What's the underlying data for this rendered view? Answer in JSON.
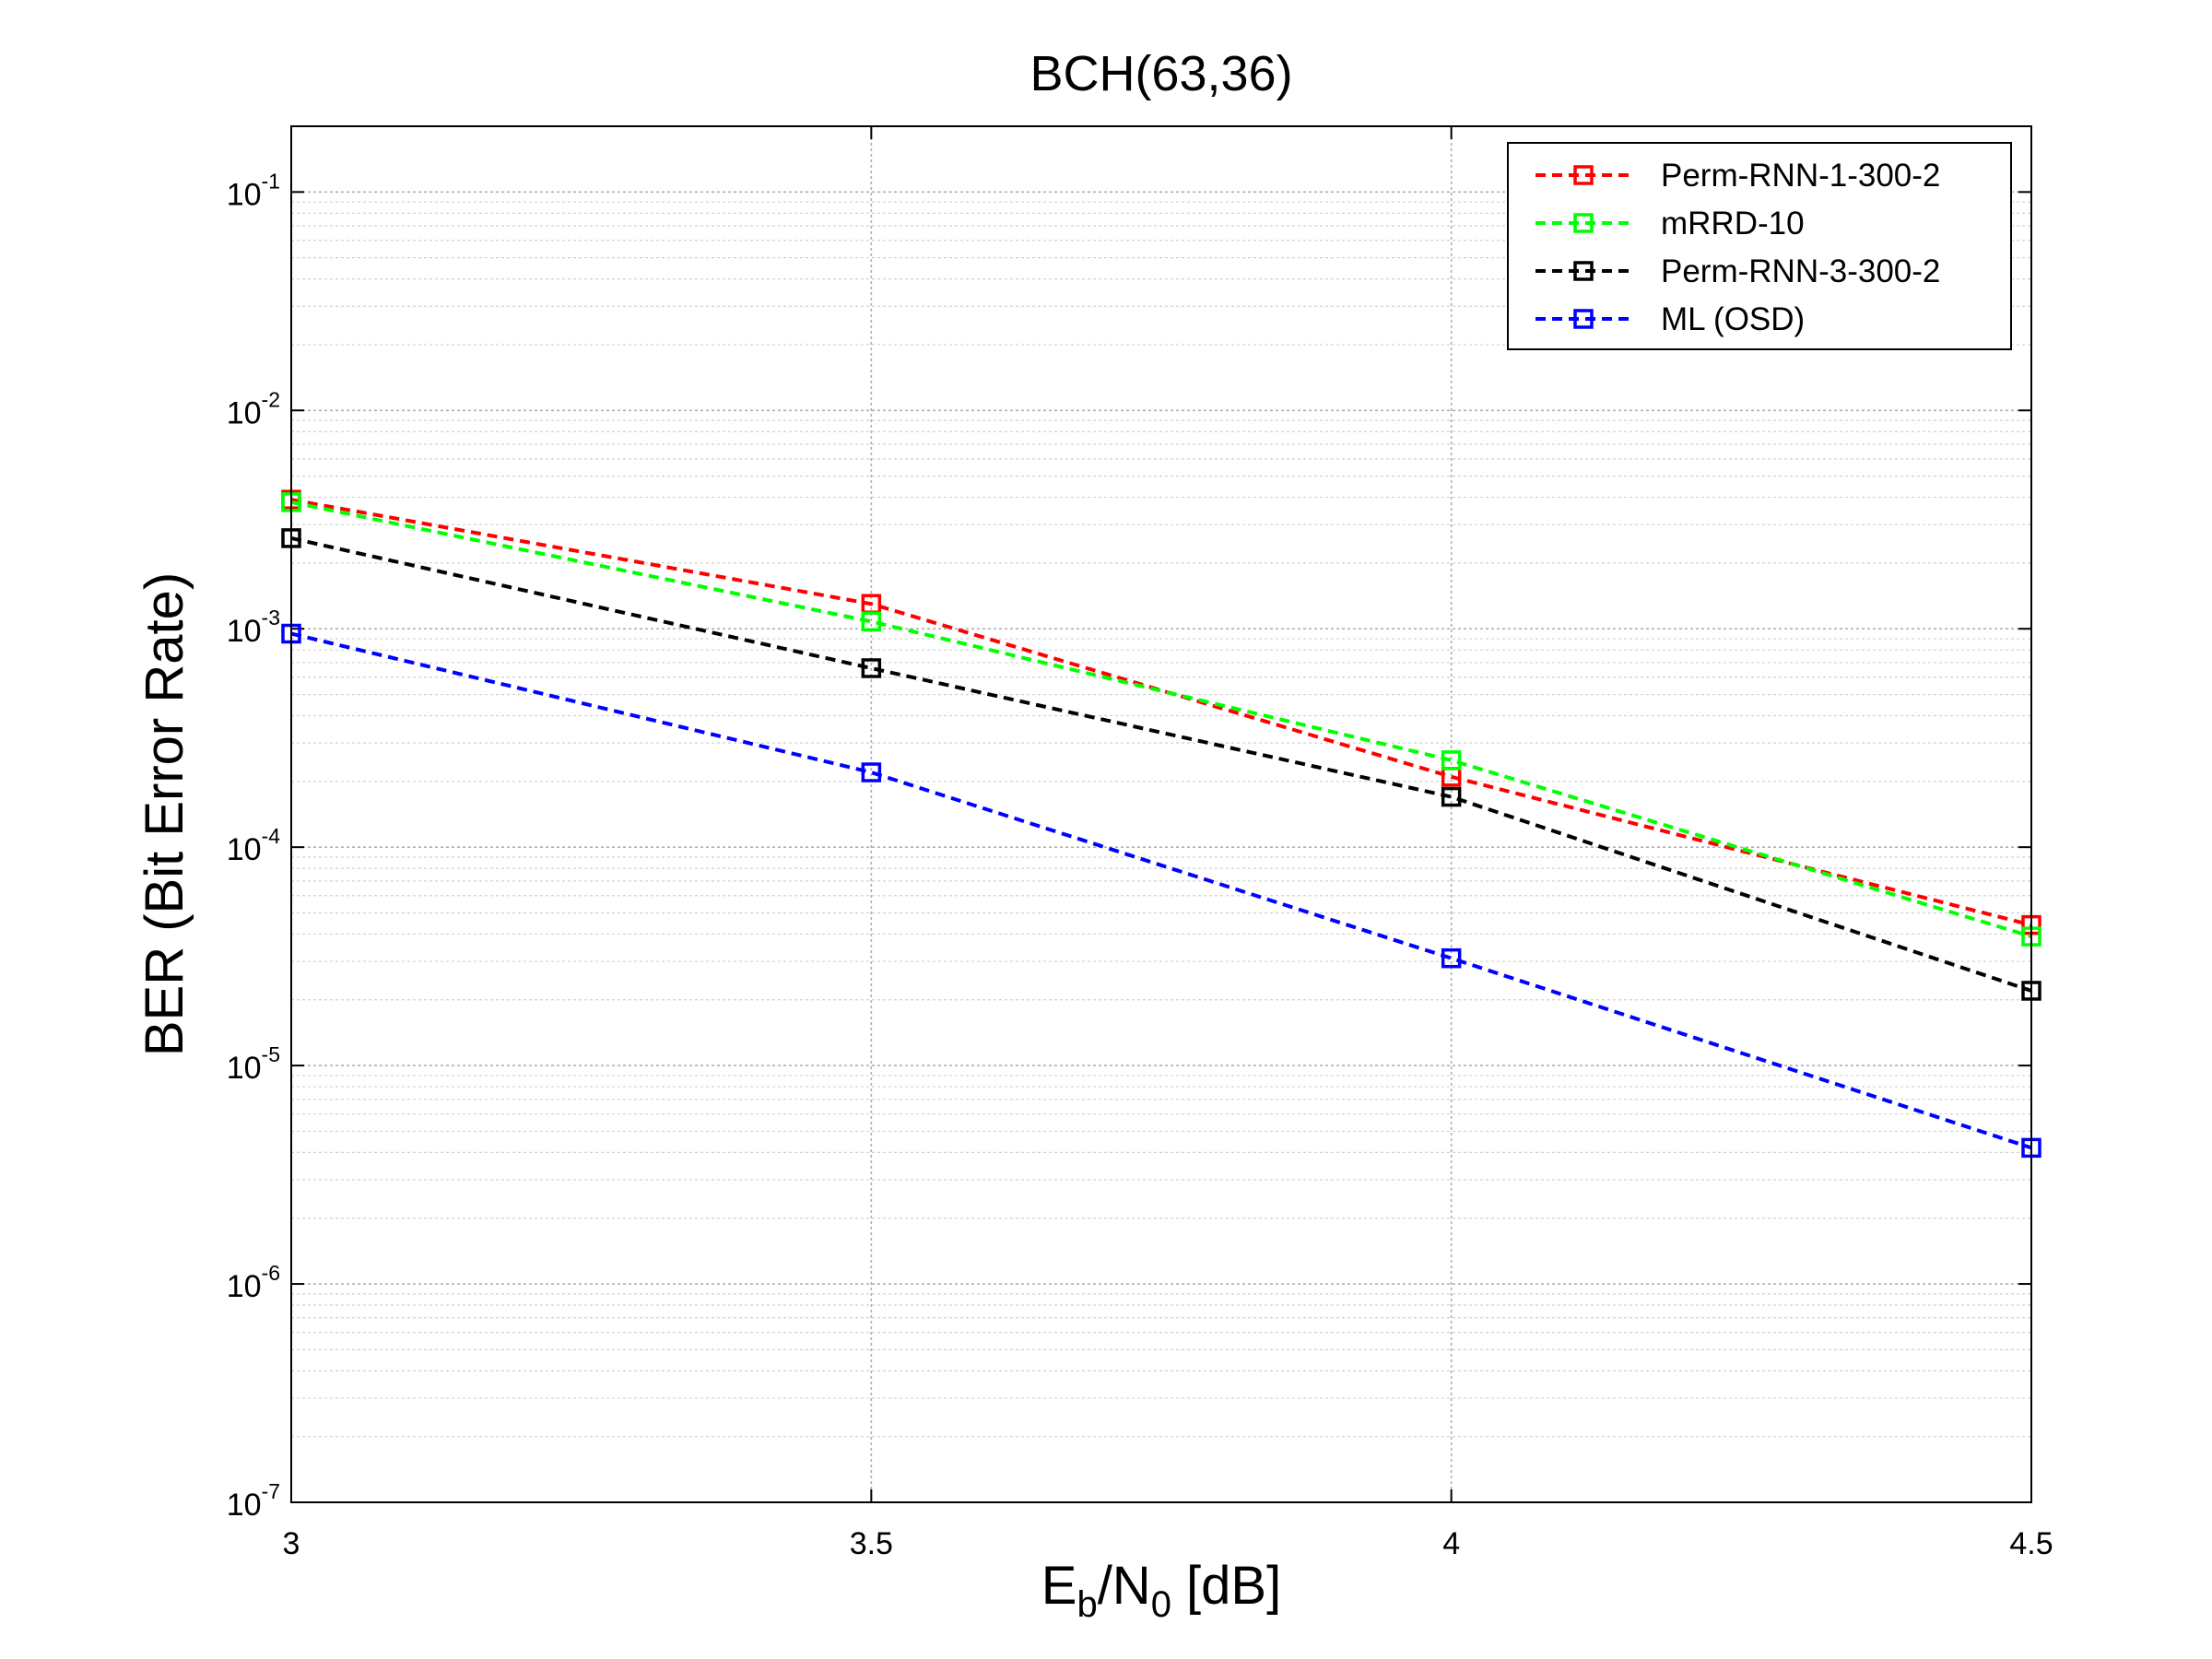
{
  "chart_data": {
    "type": "line",
    "title": "BCH(63,36)",
    "xlabel": {
      "main": "E",
      "sub1": "b",
      "slash": "/N",
      "sub2": "0",
      "tail": " [dB]"
    },
    "ylabel": "BER (Bit Error Rate)",
    "xlim": [
      3,
      4.5
    ],
    "ylim": [
      1e-07,
      0.2
    ],
    "yscale": "log",
    "grid": true,
    "legend_position": "top-right",
    "x_ticks": [
      {
        "value": 3,
        "label": "3"
      },
      {
        "value": 3.5,
        "label": "3.5"
      },
      {
        "value": 4,
        "label": "4"
      },
      {
        "value": 4.5,
        "label": "4.5"
      }
    ],
    "y_ticks": [
      {
        "exp": -1,
        "base": "10",
        "sup": "-1"
      },
      {
        "exp": -2,
        "base": "10",
        "sup": "-2"
      },
      {
        "exp": -3,
        "base": "10",
        "sup": "-3"
      },
      {
        "exp": -4,
        "base": "10",
        "sup": "-4"
      },
      {
        "exp": -5,
        "base": "10",
        "sup": "-5"
      },
      {
        "exp": -6,
        "base": "10",
        "sup": "-6"
      },
      {
        "exp": -7,
        "base": "10",
        "sup": "-7"
      }
    ],
    "x": [
      3,
      3.5,
      4,
      4.5
    ],
    "series": [
      {
        "name": "Perm-RNN-1-300-2",
        "color": "#ff0000",
        "values": [
          0.0039,
          0.0013,
          0.00021,
          4.4e-05
        ]
      },
      {
        "name": "mRRD-10",
        "color": "#00ff00",
        "values": [
          0.0038,
          0.00108,
          0.00025,
          3.9e-05
        ]
      },
      {
        "name": "Perm-RNN-3-300-2",
        "color": "#000000",
        "values": [
          0.0026,
          0.00066,
          0.00017,
          2.2e-05
        ]
      },
      {
        "name": "ML (OSD)",
        "color": "#0000ff",
        "values": [
          0.00095,
          0.00022,
          3.1e-05,
          4.2e-06
        ]
      }
    ]
  }
}
